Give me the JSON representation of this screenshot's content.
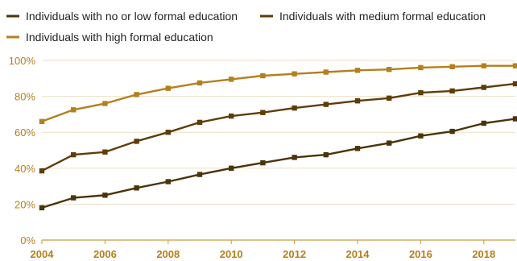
{
  "chart_data": {
    "type": "line",
    "title": "",
    "xlabel": "",
    "ylabel": "",
    "x": [
      2004,
      2005,
      2006,
      2007,
      2008,
      2009,
      2010,
      2011,
      2012,
      2013,
      2014,
      2015,
      2016,
      2017,
      2018,
      2019
    ],
    "xlim": [
      2004,
      2019
    ],
    "ylim": [
      0,
      100
    ],
    "x_ticks": [
      2004,
      2006,
      2008,
      2010,
      2012,
      2014,
      2016,
      2018
    ],
    "x_tick_labels": [
      "2004",
      "2006",
      "2008",
      "2010",
      "2012",
      "2014",
      "2016",
      "2018"
    ],
    "y_ticks": [
      0,
      20,
      40,
      60,
      80,
      100
    ],
    "y_tick_labels": [
      "0%",
      "20%",
      "40%",
      "60%",
      "80%",
      "100%"
    ],
    "grid": "horizontal",
    "legend_position": "top-left",
    "series": [
      {
        "name": "Individuals with no or low formal education",
        "color": "#4a3409",
        "values": [
          18,
          23.5,
          25,
          29,
          32.5,
          36.5,
          40,
          43,
          46,
          47.5,
          51,
          54,
          58,
          60.5,
          65,
          67.5
        ]
      },
      {
        "name": "Individuals with medium formal education",
        "color": "#5e3d06",
        "values": [
          38.5,
          47.5,
          49,
          55,
          60,
          65.5,
          69,
          71,
          73.5,
          75.5,
          77.5,
          79,
          82,
          83,
          85,
          87
        ]
      },
      {
        "name": "Individuals with high formal education",
        "color": "#b57f1d",
        "values": [
          66,
          72.5,
          76,
          81,
          84.5,
          87.5,
          89.5,
          91.5,
          92.5,
          93.5,
          94.5,
          95,
          96,
          96.5,
          97,
          97
        ]
      }
    ]
  }
}
